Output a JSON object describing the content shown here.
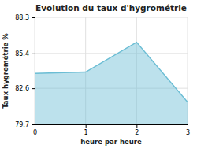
{
  "chart_data": {
    "type": "area",
    "title": "Evolution du taux d'hygrométrie",
    "xlabel": "heure par heure",
    "ylabel": "Taux hygrométrie %",
    "x": [
      0,
      1,
      2,
      3
    ],
    "values": [
      83.8,
      83.9,
      86.3,
      81.5
    ],
    "xlim": [
      0,
      3
    ],
    "ylim": [
      79.7,
      88.3
    ],
    "xticks": [
      0,
      1,
      2,
      3
    ],
    "yticks": [
      79.7,
      82.6,
      85.4,
      88.3
    ],
    "grid": true,
    "color": "#6bbdd4"
  }
}
